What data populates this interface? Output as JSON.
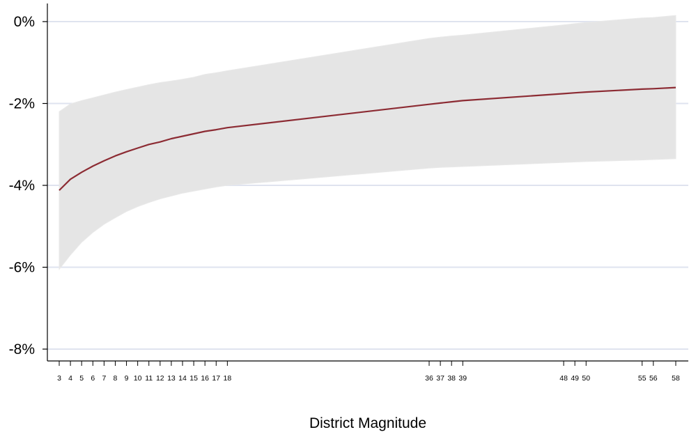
{
  "chart_data": {
    "type": "line",
    "title": "",
    "xlabel": "District Magnitude",
    "ylabel": "",
    "ylim": [
      -8.4,
      0.4
    ],
    "y_ticks": [
      0,
      -2,
      -4,
      -6,
      -8
    ],
    "y_tick_labels": [
      "0%",
      "-2%",
      "-4%",
      "-6%",
      "-8%"
    ],
    "x_ticks": [
      3,
      4,
      5,
      6,
      7,
      8,
      9,
      10,
      11,
      12,
      13,
      14,
      15,
      16,
      17,
      18,
      36,
      37,
      38,
      39,
      48,
      49,
      50,
      55,
      56,
      58
    ],
    "grid": true,
    "colors": {
      "line": "#8c2b33",
      "band": "#e5e5e5",
      "grid": "#dfe3ef",
      "axis": "#000000"
    },
    "series": [
      {
        "x": [
          3,
          4,
          5,
          6,
          7,
          8,
          9,
          10,
          11,
          12,
          13,
          14,
          15,
          16,
          17,
          18,
          36,
          37,
          38,
          39,
          48,
          49,
          50,
          55,
          56,
          58
        ],
        "values": [
          -4.12,
          -3.85,
          -3.68,
          -3.53,
          -3.4,
          -3.28,
          -3.18,
          -3.09,
          -3.0,
          -2.94,
          -2.86,
          -2.8,
          -2.74,
          -2.68,
          -2.64,
          -2.59,
          -2.02,
          -1.99,
          -1.96,
          -1.93,
          -1.76,
          -1.74,
          -1.72,
          -1.65,
          -1.64,
          -1.61
        ],
        "lower": [
          -6.05,
          -5.7,
          -5.39,
          -5.15,
          -4.95,
          -4.79,
          -4.64,
          -4.52,
          -4.42,
          -4.33,
          -4.26,
          -4.19,
          -4.14,
          -4.09,
          -4.04,
          -4.0,
          -3.58,
          -3.56,
          -3.55,
          -3.54,
          -3.44,
          -3.43,
          -3.42,
          -3.38,
          -3.37,
          -3.35
        ],
        "upper": [
          -2.2,
          -2.01,
          -1.93,
          -1.86,
          -1.79,
          -1.72,
          -1.66,
          -1.6,
          -1.54,
          -1.49,
          -1.45,
          -1.41,
          -1.36,
          -1.29,
          -1.25,
          -1.2,
          -0.41,
          -0.38,
          -0.35,
          -0.33,
          -0.08,
          -0.05,
          -0.02,
          0.09,
          0.1,
          0.15
        ]
      }
    ]
  }
}
